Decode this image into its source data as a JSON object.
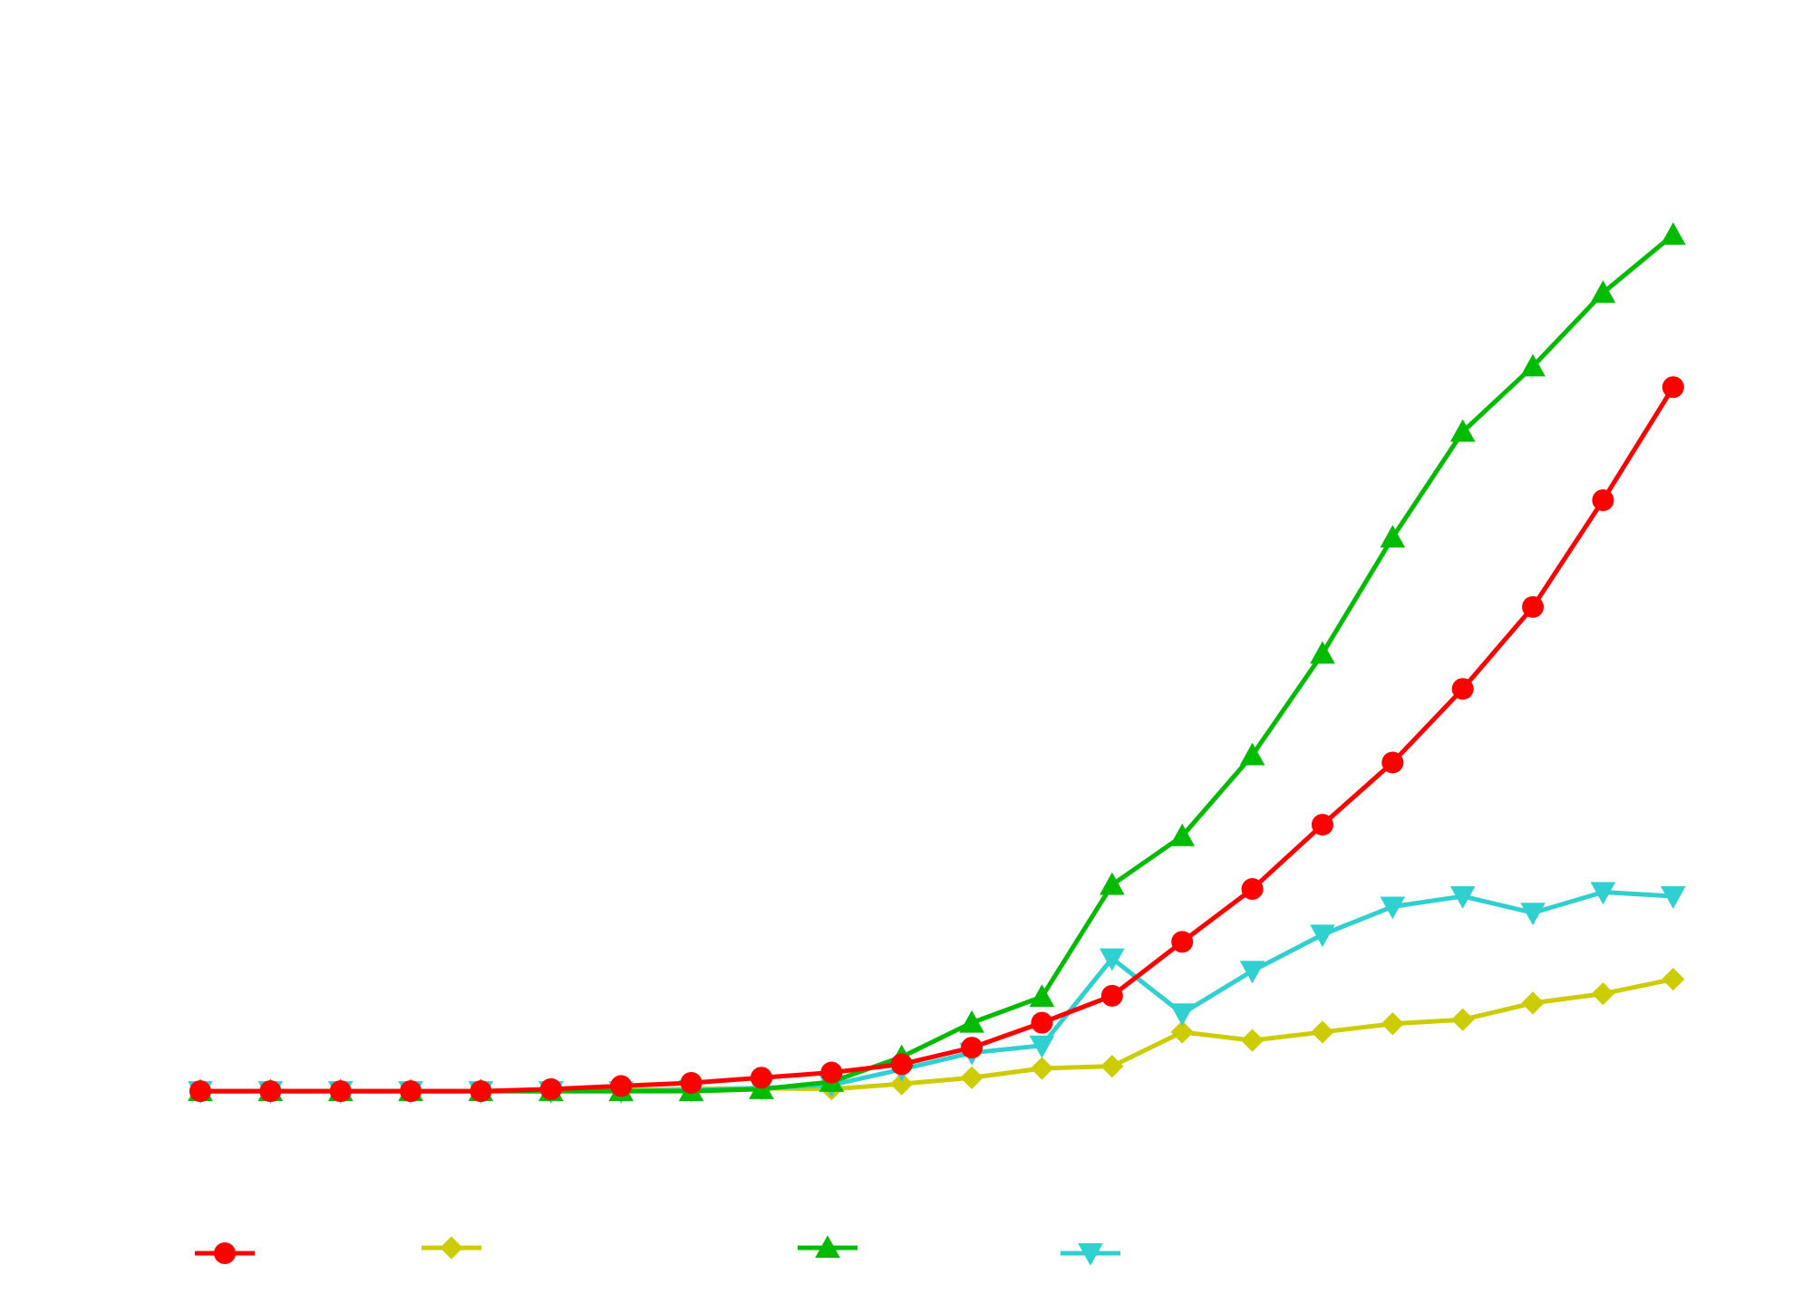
{
  "chart_data": {
    "type": "line",
    "title": "",
    "xlabel": "",
    "ylabel": "",
    "x": [
      1,
      2,
      3,
      4,
      5,
      6,
      7,
      8,
      9,
      10,
      11,
      12,
      13,
      14,
      15,
      16,
      17,
      18,
      19,
      20,
      21,
      22
    ],
    "xlim": [
      0.6,
      22.7
    ],
    "ylim": [
      -11,
      100
    ],
    "grid": false,
    "legend_position": "bottom",
    "series": [
      {
        "color": "#ff0000",
        "marker": "circle",
        "values": [
          0,
          0,
          0,
          0,
          0,
          0.2,
          0.5,
          0.8,
          1.3,
          1.8,
          2.6,
          4.2,
          6.6,
          9.2,
          14.4,
          19.5,
          25.7,
          31.7,
          38.8,
          46.7,
          57.0,
          67.9
        ]
      },
      {
        "color": "#cccc00",
        "marker": "diamond",
        "values": [
          0,
          0,
          0,
          0,
          0,
          0,
          0.1,
          0.2,
          0.3,
          0.2,
          0.7,
          1.3,
          2.2,
          2.4,
          5.7,
          4.9,
          5.7,
          6.5,
          6.9,
          8.5,
          9.4,
          10.8
        ]
      },
      {
        "color": "#00bb00",
        "marker": "triangle-up",
        "values": [
          0,
          0,
          0,
          0,
          0,
          0,
          0,
          0,
          0.2,
          0.9,
          3.3,
          6.6,
          9.1,
          19.9,
          24.6,
          32.4,
          42.2,
          53.4,
          63.6,
          69.9,
          77.0,
          82.6
        ]
      },
      {
        "color": "#30d0d0",
        "marker": "triangle-down",
        "values": [
          0,
          0,
          0,
          0,
          0,
          0,
          0,
          0.1,
          0.3,
          0.6,
          2.1,
          3.7,
          4.4,
          12.8,
          7.5,
          11.6,
          15.1,
          17.8,
          18.8,
          17.2,
          19.2,
          18.8
        ]
      }
    ]
  }
}
